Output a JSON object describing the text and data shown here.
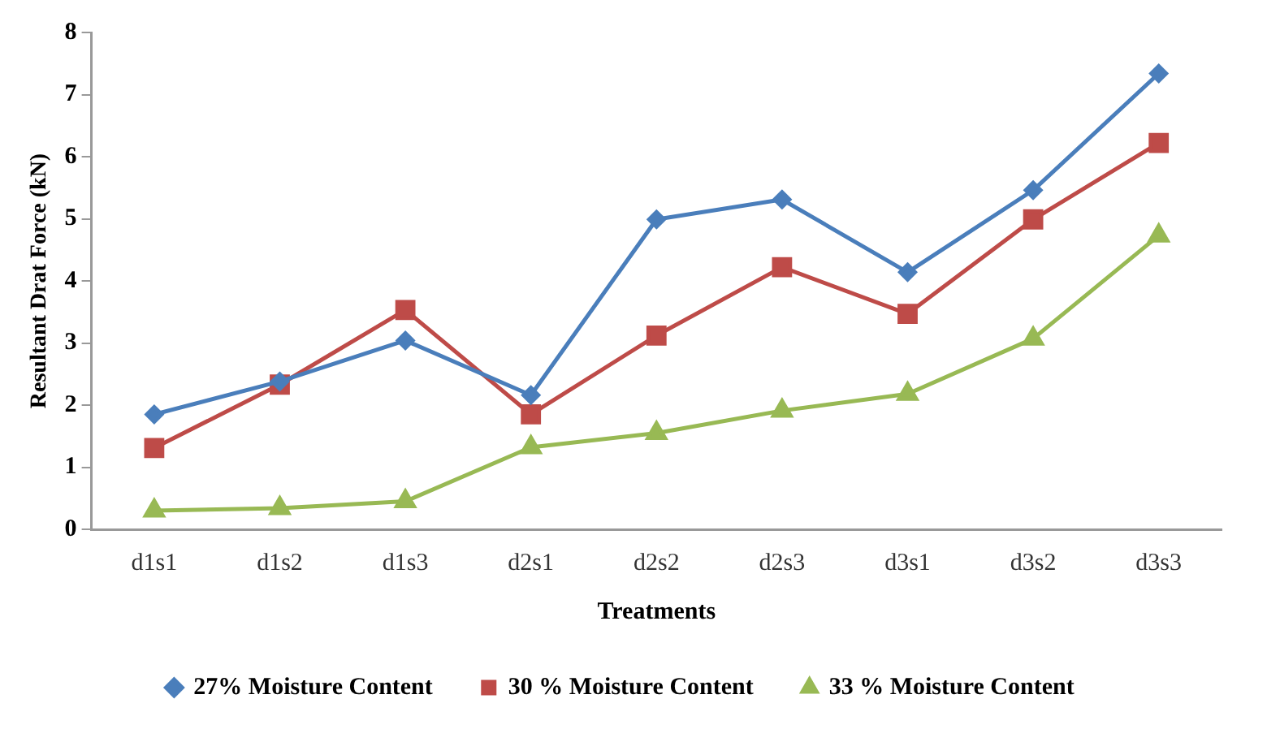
{
  "chart_data": {
    "type": "line",
    "xlabel": "Treatments",
    "ylabel": "Resultant Drat Force (kN)",
    "categories": [
      "d1s1",
      "d1s2",
      "d1s3",
      "d2s1",
      "d2s2",
      "d2s3",
      "d3s1",
      "d3s2",
      "d3s3"
    ],
    "ylim": [
      0,
      8
    ],
    "yticks": [
      0,
      1,
      2,
      3,
      4,
      5,
      6,
      7,
      8
    ],
    "grid": false,
    "legend": "bottom",
    "line_style": "solid",
    "series": [
      {
        "name": "27% Moisture Content",
        "color": "#4a7ebb",
        "marker": "diamond",
        "values": [
          1.85,
          2.38,
          3.04,
          2.16,
          4.99,
          5.31,
          4.14,
          5.46,
          7.34
        ]
      },
      {
        "name": "30 % Moisture Content",
        "color": "#be4b48",
        "marker": "square",
        "values": [
          1.31,
          2.33,
          3.53,
          1.85,
          3.12,
          4.22,
          3.47,
          4.99,
          6.22
        ]
      },
      {
        "name": "33 % Moisture Content",
        "color": "#98b954",
        "marker": "triangle",
        "values": [
          0.3,
          0.34,
          0.45,
          1.32,
          1.55,
          1.91,
          2.18,
          3.07,
          4.73
        ]
      }
    ]
  }
}
